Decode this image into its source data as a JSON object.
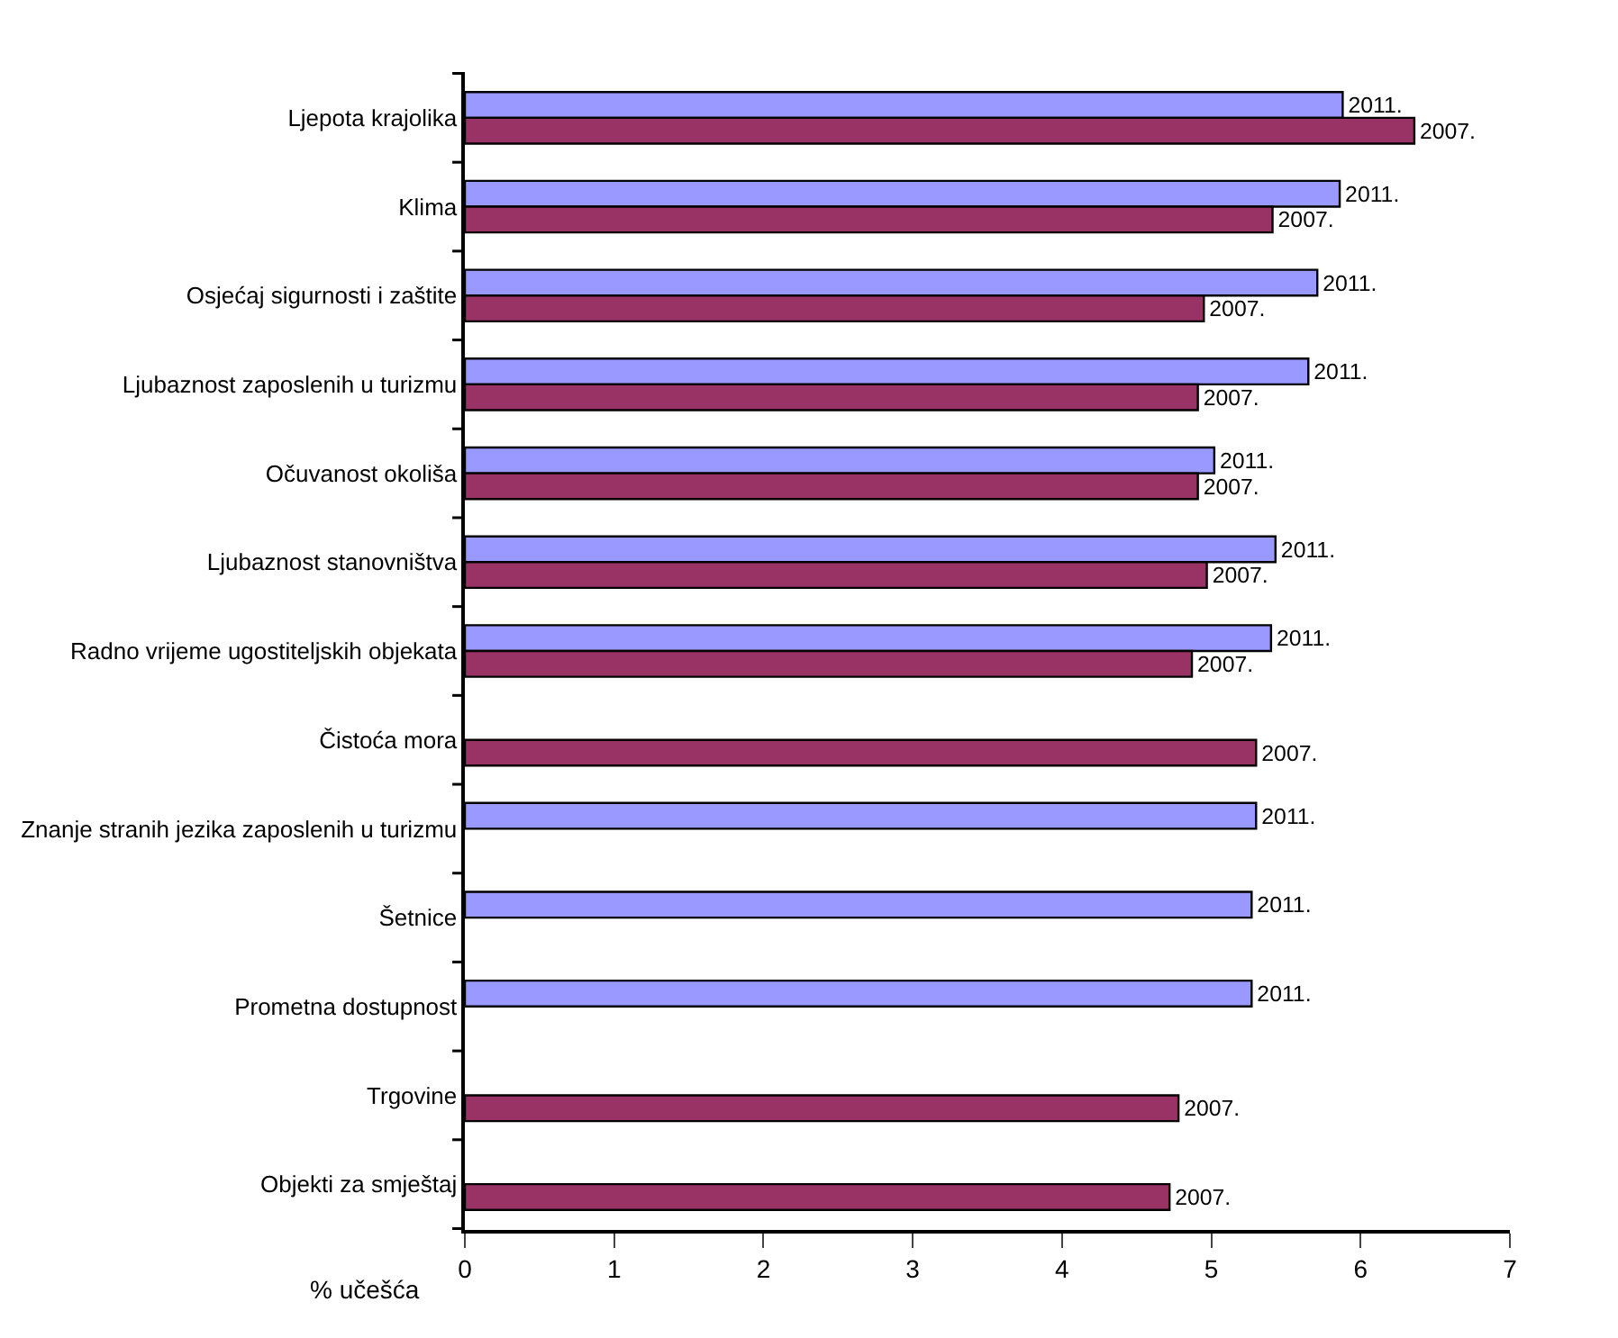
{
  "chart_data": {
    "type": "bar",
    "orientation": "horizontal",
    "xlabel": "% učešća",
    "categories": [
      "Ljepota krajolika",
      "Klima",
      "Osjećaj sigurnosti i zaštite",
      "Ljubaznost zaposlenih u turizmu",
      "Očuvanost okoliša",
      "Ljubaznost stanovništva",
      "Radno vrijeme ugostiteljskih objekata",
      "Čistoća mora",
      "Znanje stranih jezika zaposlenih u turizmu",
      "Šetnice",
      "Prometna dostupnost",
      "Trgovine",
      "Objekti za smještaj"
    ],
    "series": [
      {
        "name": "2011.",
        "color": "#9999ff",
        "values": [
          5.88,
          5.86,
          5.71,
          5.65,
          5.02,
          5.43,
          5.4,
          null,
          5.3,
          5.27,
          5.27,
          null,
          null
        ]
      },
      {
        "name": "2007.",
        "color": "#993366",
        "values": [
          6.36,
          5.41,
          4.95,
          4.91,
          4.91,
          4.97,
          4.87,
          5.3,
          null,
          null,
          null,
          4.78,
          4.72
        ]
      }
    ],
    "xlim": [
      0,
      7
    ],
    "xticks": [
      0,
      1,
      2,
      3,
      4,
      5,
      6,
      7
    ]
  }
}
